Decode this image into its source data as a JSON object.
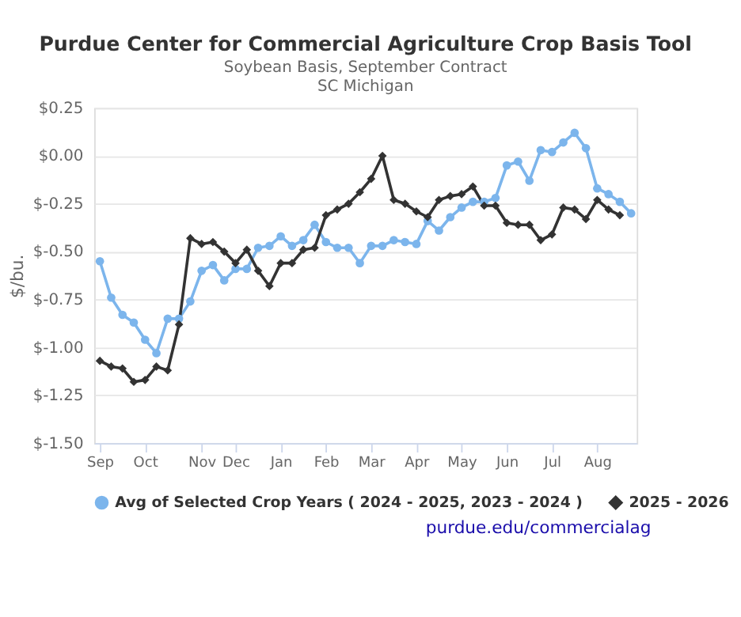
{
  "chart_data": {
    "type": "line",
    "title": "Purdue Center for Commercial Agriculture Crop Basis Tool",
    "subtitle": "Soybean Basis, September Contract\nSC Michigan",
    "ylabel": "$/bu.",
    "categories": [
      "Sep",
      null,
      null,
      null,
      "Oct",
      null,
      null,
      null,
      null,
      "Nov",
      null,
      null,
      "Dec",
      null,
      null,
      null,
      "Jan",
      null,
      null,
      null,
      "Feb",
      null,
      null,
      null,
      "Mar",
      null,
      null,
      null,
      "Apr",
      null,
      null,
      null,
      "May",
      null,
      null,
      null,
      "Jun",
      null,
      null,
      null,
      "Jul",
      null,
      null,
      null,
      "Aug",
      null,
      null,
      null
    ],
    "series": [
      {
        "name": "Avg of Selected Crop Years ( 2024 - 2025, 2023 - 2024 )",
        "color": "#7cb5ec",
        "marker": "circle",
        "values": [
          -0.55,
          -0.74,
          -0.83,
          -0.87,
          -0.96,
          -1.03,
          -0.85,
          -0.85,
          -0.76,
          -0.6,
          -0.57,
          -0.65,
          -0.59,
          -0.59,
          -0.48,
          -0.47,
          -0.42,
          -0.47,
          -0.44,
          -0.36,
          -0.45,
          -0.48,
          -0.48,
          -0.56,
          -0.47,
          -0.47,
          -0.44,
          -0.45,
          -0.46,
          -0.34,
          -0.39,
          -0.32,
          -0.27,
          -0.24,
          -0.24,
          -0.22,
          -0.05,
          -0.03,
          -0.13,
          0.03,
          0.02,
          0.07,
          0.12,
          0.04,
          -0.17,
          -0.2,
          -0.24,
          -0.3
        ]
      },
      {
        "name": "2025 - 2026",
        "color": "#333333",
        "marker": "diamond",
        "values": [
          -1.07,
          -1.1,
          -1.11,
          -1.18,
          -1.17,
          -1.1,
          -1.12,
          -0.88,
          -0.43,
          -0.46,
          -0.45,
          -0.5,
          -0.56,
          -0.49,
          -0.6,
          -0.68,
          -0.56,
          -0.56,
          -0.49,
          -0.48,
          -0.31,
          -0.28,
          -0.25,
          -0.19,
          -0.12,
          0.0,
          -0.23,
          -0.25,
          -0.29,
          -0.32,
          -0.23,
          -0.21,
          -0.2,
          -0.16,
          -0.26,
          -0.26,
          -0.35,
          -0.36,
          -0.36,
          -0.44,
          -0.41,
          -0.27,
          -0.28,
          -0.33,
          -0.23,
          -0.28,
          -0.31,
          null
        ]
      }
    ],
    "ylim": [
      -1.5,
      0.25
    ],
    "yticks": [
      {
        "value": -1.5,
        "label": "$-1.50"
      },
      {
        "value": -1.25,
        "label": "$-1.25"
      },
      {
        "value": -1.0,
        "label": "$-1.00"
      },
      {
        "value": -0.75,
        "label": "$-0.75"
      },
      {
        "value": -0.5,
        "label": "$-0.50"
      },
      {
        "value": -0.25,
        "label": "$-0.25"
      },
      {
        "value": 0.0,
        "label": "$0.00"
      },
      {
        "value": 0.25,
        "label": "$0.25"
      }
    ],
    "grid": "y",
    "legend": "bottom",
    "annotations": [
      "purdue.edu/commercialag"
    ]
  }
}
